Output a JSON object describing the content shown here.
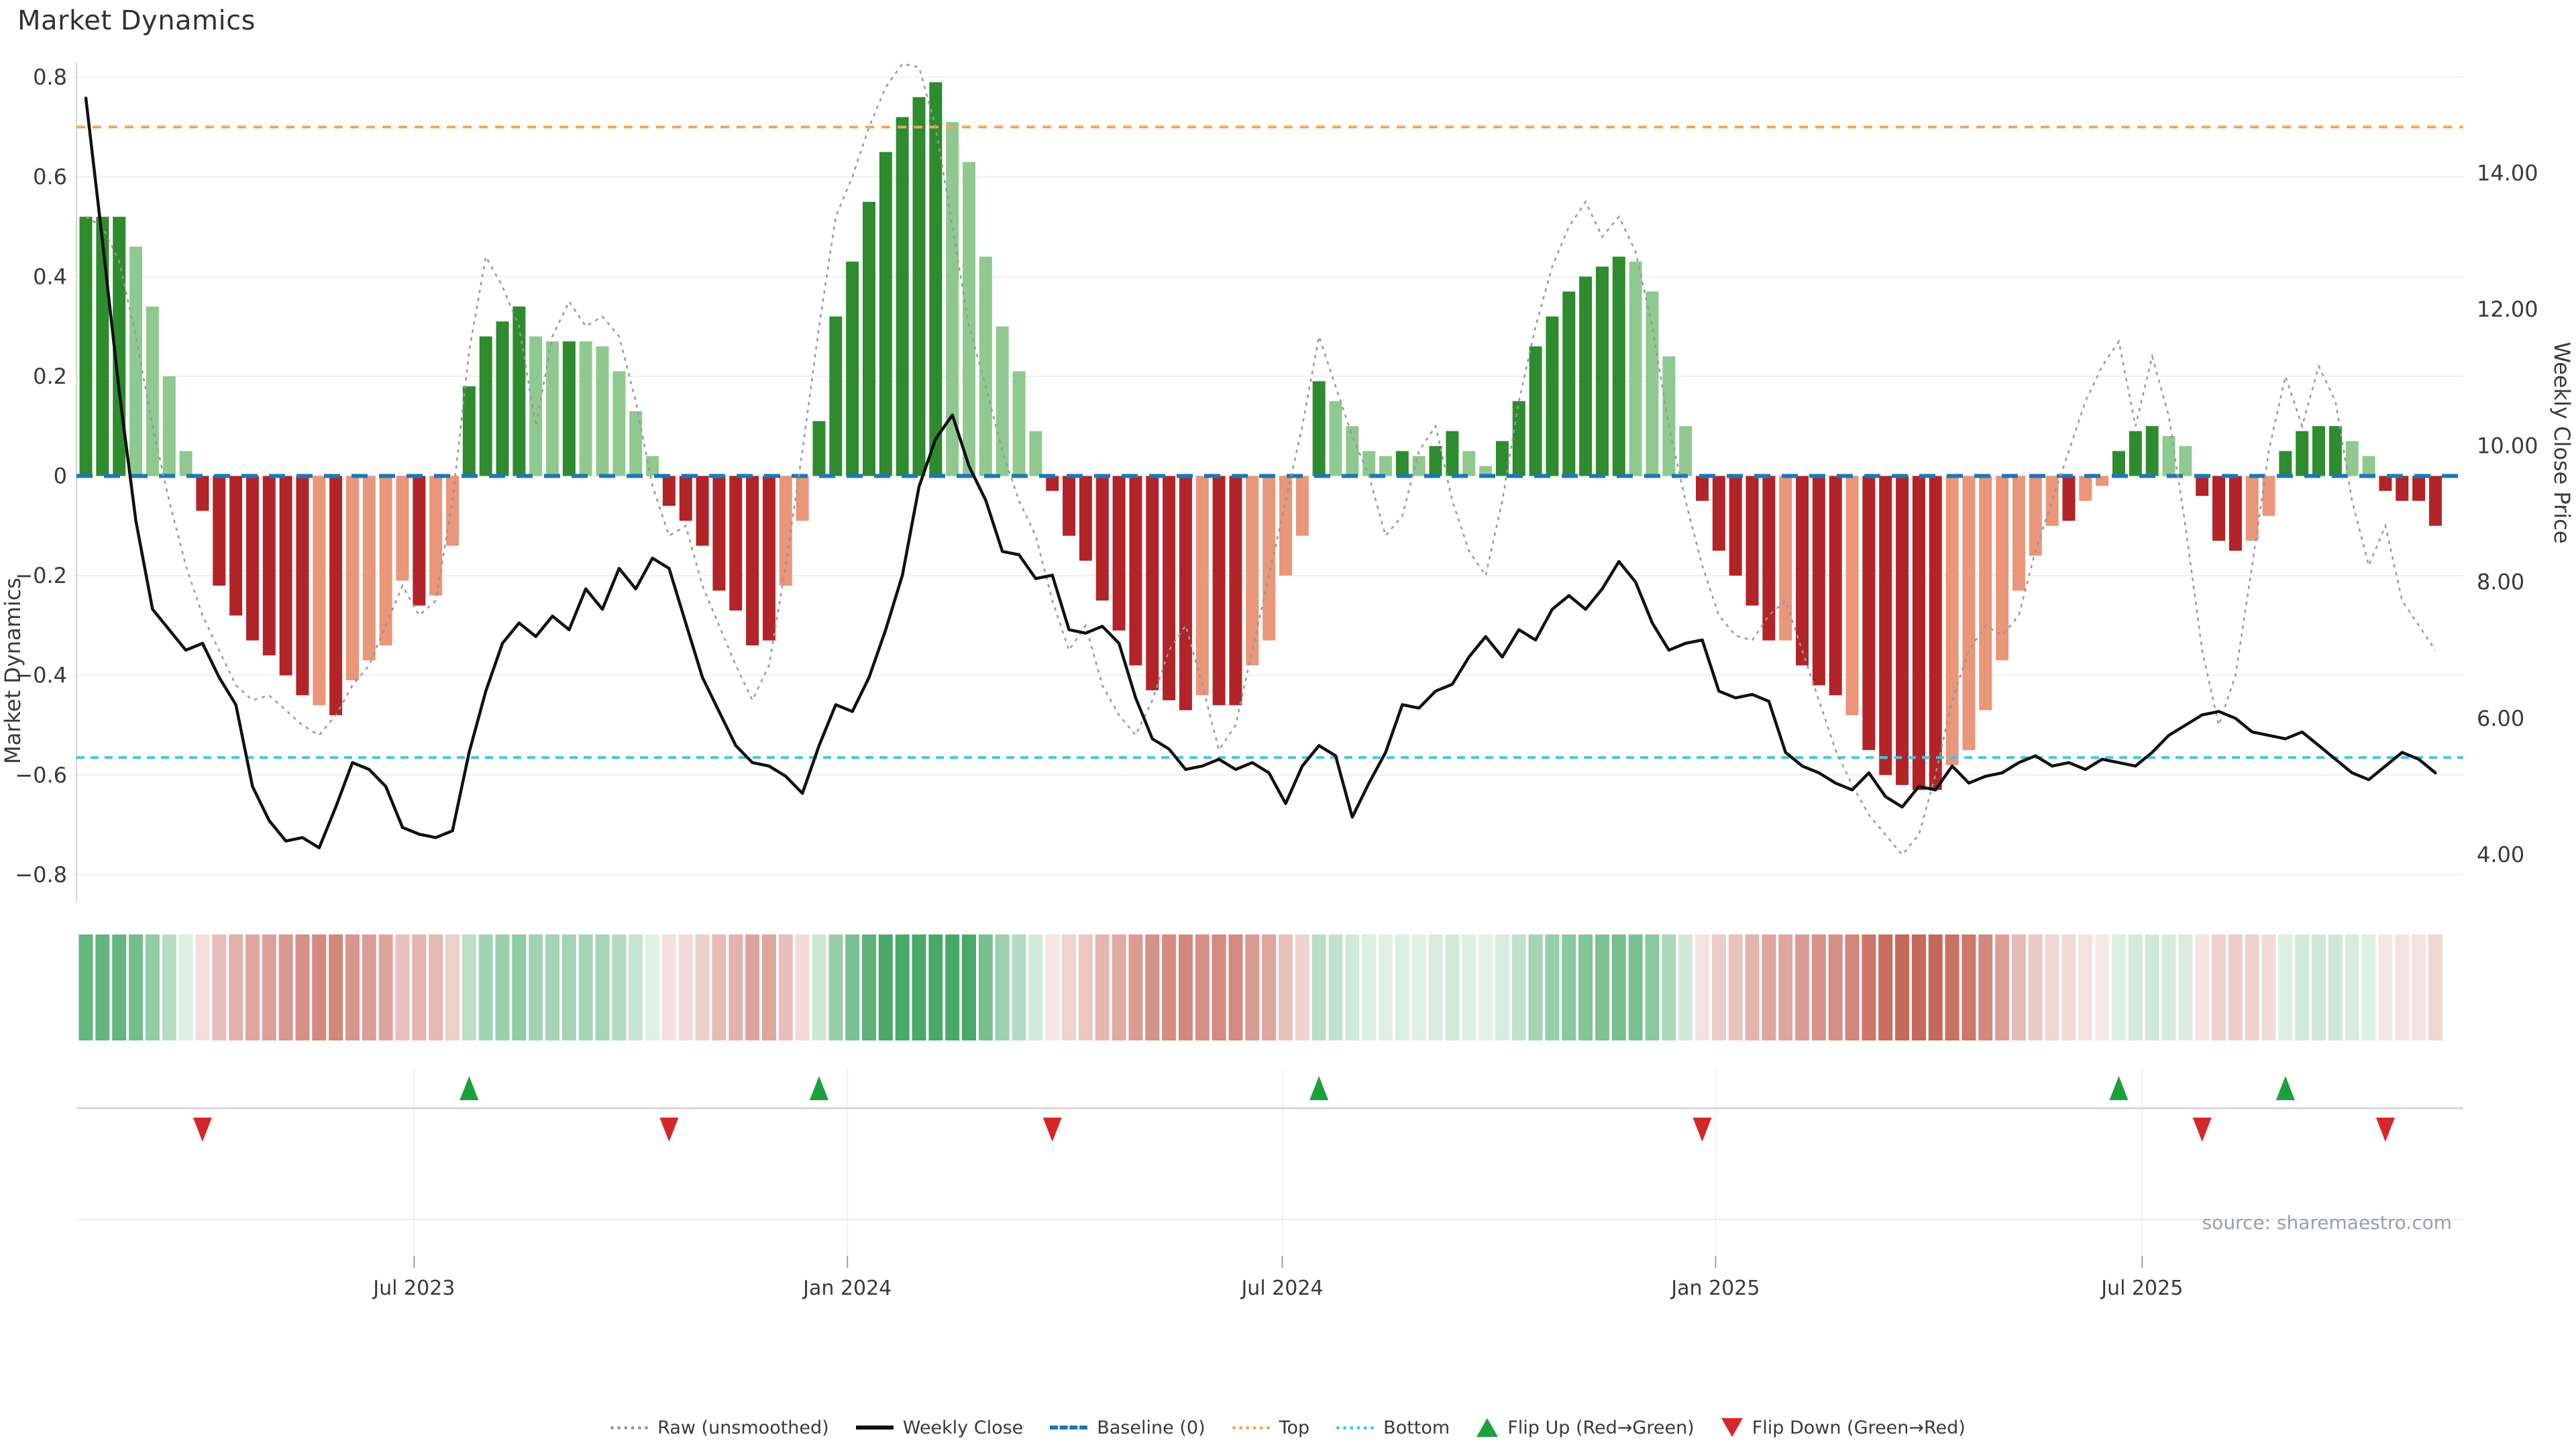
{
  "title": "Market Dynamics",
  "source_note": "source: sharemaestro.com",
  "axes": {
    "left_label": "Market Dynamics",
    "right_label": "Weekly Close Price",
    "left_ticks": [
      "0.8",
      "0.6",
      "0.4",
      "0.2",
      "0",
      "−0.2",
      "−0.4",
      "−0.6",
      "−0.8"
    ],
    "left_tick_values": [
      0.8,
      0.6,
      0.4,
      0.2,
      0,
      -0.2,
      -0.4,
      -0.6,
      -0.8
    ],
    "right_ticks": [
      "14.00",
      "12.00",
      "10.00",
      "8.00",
      "6.00",
      "4.00"
    ],
    "right_tick_values": [
      14,
      12,
      10,
      8,
      6,
      4
    ],
    "x_ticks": [
      {
        "label": "Jul 2023",
        "week": 19.7
      },
      {
        "label": "Jan 2024",
        "week": 45.7
      },
      {
        "label": "Jul 2024",
        "week": 71.8
      },
      {
        "label": "Jan 2025",
        "week": 97.8
      },
      {
        "label": "Jul 2025",
        "week": 123.4
      }
    ]
  },
  "legend": [
    {
      "label": "Raw (unsmoothed)",
      "swatch": "dotted-gray",
      "name": "legend-item-raw"
    },
    {
      "label": "Weekly Close",
      "swatch": "solid-black",
      "name": "legend-item-weekly-close"
    },
    {
      "label": "Baseline (0)",
      "swatch": "dashed-blue",
      "name": "legend-item-baseline"
    },
    {
      "label": "Top",
      "swatch": "dotted-orange",
      "name": "legend-item-top"
    },
    {
      "label": "Bottom",
      "swatch": "dotted-cyan",
      "name": "legend-item-bottom"
    },
    {
      "label": "Flip Up (Red→Green)",
      "swatch": "tri-up",
      "name": "legend-item-flip-up"
    },
    {
      "label": "Flip Down (Green→Red)",
      "swatch": "tri-down",
      "name": "legend-item-flip-down"
    }
  ],
  "colors": {
    "bar_pos_dark": "#2e8b2e",
    "bar_pos_light": "#8fc98f",
    "bar_neg_dark": "#b22428",
    "bar_neg_light": "#e9967a",
    "baseline_blue": "#1f77b4",
    "top_orange": "#f0a558",
    "bottom_cyan": "#3fc6ea",
    "raw_gray": "#999999",
    "price_black": "#111111",
    "grid": "#eef0f2",
    "spine": "#d0d4d9",
    "panel_line": "#d8d8d8",
    "flip_up_green": "#1ca03c",
    "flip_down_red": "#d62728",
    "heat_pos_base": "#4aa96a",
    "heat_neg_base": "#c7685c",
    "tick_text": "#3a3a3a",
    "source_text": "#9aa0a6"
  },
  "chart_data": {
    "type": "bar",
    "subtype": "oscillator-with-price-overlay",
    "title": "Market Dynamics",
    "xlabel": "",
    "ylabel_left": "Market Dynamics",
    "ylabel_right": "Weekly Close Price",
    "ylim_left": [
      -0.8,
      0.8
    ],
    "ylim_right": [
      4,
      14
    ],
    "grid": true,
    "legend_position": "bottom-center",
    "baseline": 0,
    "top_threshold": 0.7,
    "bottom_threshold": -0.565,
    "n_weeks": 142,
    "x_range_note": "weekly bars, Feb 2023 through Nov 2025",
    "values": [
      0.52,
      0.52,
      0.52,
      0.46,
      0.34,
      0.2,
      0.05,
      -0.07,
      -0.22,
      -0.28,
      -0.33,
      -0.36,
      -0.4,
      -0.44,
      -0.46,
      -0.48,
      -0.41,
      -0.37,
      -0.34,
      -0.21,
      -0.26,
      -0.24,
      -0.14,
      0.18,
      0.28,
      0.31,
      0.34,
      0.28,
      0.27,
      0.27,
      0.27,
      0.26,
      0.21,
      0.13,
      0.04,
      -0.06,
      -0.09,
      -0.14,
      -0.23,
      -0.27,
      -0.34,
      -0.33,
      -0.22,
      -0.09,
      0.11,
      0.32,
      0.43,
      0.55,
      0.65,
      0.72,
      0.76,
      0.79,
      0.71,
      0.63,
      0.44,
      0.3,
      0.21,
      0.09,
      -0.03,
      -0.12,
      -0.17,
      -0.25,
      -0.31,
      -0.38,
      -0.43,
      -0.45,
      -0.47,
      -0.44,
      -0.46,
      -0.46,
      -0.38,
      -0.33,
      -0.2,
      -0.12,
      0.19,
      0.15,
      0.1,
      0.05,
      0.04,
      0.05,
      0.04,
      0.06,
      0.09,
      0.05,
      0.02,
      0.07,
      0.15,
      0.26,
      0.32,
      0.37,
      0.4,
      0.42,
      0.44,
      0.43,
      0.37,
      0.24,
      0.1,
      -0.05,
      -0.15,
      -0.2,
      -0.26,
      -0.33,
      -0.33,
      -0.38,
      -0.42,
      -0.44,
      -0.48,
      -0.55,
      -0.6,
      -0.62,
      -0.63,
      -0.63,
      -0.58,
      -0.55,
      -0.47,
      -0.37,
      -0.23,
      -0.16,
      -0.1,
      -0.09,
      -0.05,
      -0.02,
      0.05,
      0.09,
      0.1,
      0.08,
      0.06,
      -0.04,
      -0.13,
      -0.15,
      -0.13,
      -0.08,
      0.05,
      0.09,
      0.1,
      0.1,
      0.07,
      0.04,
      -0.03,
      -0.05,
      -0.05,
      -0.1
    ],
    "tones": [
      "d",
      "d",
      "d",
      "l",
      "l",
      "l",
      "l",
      "d",
      "d",
      "d",
      "d",
      "d",
      "d",
      "d",
      "l",
      "d",
      "l",
      "l",
      "l",
      "l",
      "d",
      "l",
      "l",
      "d",
      "d",
      "d",
      "d",
      "l",
      "l",
      "d",
      "l",
      "l",
      "l",
      "l",
      "l",
      "d",
      "d",
      "d",
      "d",
      "d",
      "d",
      "d",
      "l",
      "l",
      "d",
      "d",
      "d",
      "d",
      "d",
      "d",
      "d",
      "d",
      "l",
      "l",
      "l",
      "l",
      "l",
      "l",
      "d",
      "d",
      "d",
      "d",
      "d",
      "d",
      "d",
      "d",
      "d",
      "l",
      "d",
      "d",
      "l",
      "l",
      "l",
      "l",
      "d",
      "l",
      "l",
      "l",
      "l",
      "d",
      "l",
      "d",
      "d",
      "l",
      "l",
      "d",
      "d",
      "d",
      "d",
      "d",
      "d",
      "d",
      "d",
      "l",
      "l",
      "l",
      "l",
      "d",
      "d",
      "d",
      "d",
      "d",
      "l",
      "d",
      "d",
      "d",
      "l",
      "d",
      "d",
      "d",
      "d",
      "d",
      "l",
      "l",
      "l",
      "l",
      "l",
      "l",
      "l",
      "d",
      "l",
      "l",
      "d",
      "d",
      "d",
      "l",
      "l",
      "d",
      "d",
      "d",
      "l",
      "l",
      "d",
      "d",
      "d",
      "d",
      "l",
      "l",
      "d",
      "d",
      "d",
      "d"
    ],
    "raw": [
      0.52,
      0.5,
      0.43,
      0.28,
      0.1,
      -0.05,
      -0.18,
      -0.28,
      -0.35,
      -0.42,
      -0.45,
      -0.44,
      -0.47,
      -0.5,
      -0.52,
      -0.48,
      -0.42,
      -0.38,
      -0.3,
      -0.22,
      -0.28,
      -0.25,
      -0.05,
      0.25,
      0.44,
      0.38,
      0.3,
      0.1,
      0.28,
      0.35,
      0.3,
      0.32,
      0.28,
      0.15,
      -0.02,
      -0.12,
      -0.1,
      -0.22,
      -0.3,
      -0.38,
      -0.45,
      -0.38,
      -0.18,
      0.05,
      0.3,
      0.52,
      0.6,
      0.7,
      0.78,
      0.84,
      0.82,
      0.7,
      0.5,
      0.3,
      0.18,
      0.05,
      -0.05,
      -0.12,
      -0.25,
      -0.35,
      -0.3,
      -0.42,
      -0.48,
      -0.52,
      -0.45,
      -0.35,
      -0.3,
      -0.42,
      -0.55,
      -0.5,
      -0.35,
      -0.2,
      -0.05,
      0.1,
      0.28,
      0.18,
      0.08,
      0.0,
      -0.12,
      -0.08,
      0.05,
      0.1,
      -0.05,
      -0.15,
      -0.2,
      -0.05,
      0.15,
      0.3,
      0.42,
      0.5,
      0.55,
      0.48,
      0.52,
      0.45,
      0.3,
      0.1,
      -0.05,
      -0.18,
      -0.28,
      -0.32,
      -0.33,
      -0.28,
      -0.25,
      -0.35,
      -0.45,
      -0.55,
      -0.62,
      -0.68,
      -0.72,
      -0.76,
      -0.72,
      -0.6,
      -0.45,
      -0.35,
      -0.3,
      -0.32,
      -0.28,
      -0.15,
      -0.05,
      0.05,
      0.15,
      0.22,
      0.27,
      0.1,
      0.24,
      0.12,
      -0.1,
      -0.35,
      -0.5,
      -0.4,
      -0.18,
      0.05,
      0.2,
      0.1,
      0.22,
      0.15,
      -0.05,
      -0.18,
      -0.1,
      -0.25,
      -0.3,
      -0.35
    ],
    "price": [
      15.1,
      13.0,
      10.8,
      8.9,
      7.6,
      7.3,
      7.0,
      7.1,
      6.6,
      6.2,
      5.0,
      4.5,
      4.2,
      4.25,
      4.1,
      4.7,
      5.35,
      5.25,
      5.0,
      4.4,
      4.3,
      4.25,
      4.35,
      5.5,
      6.4,
      7.1,
      7.4,
      7.2,
      7.5,
      7.3,
      7.9,
      7.6,
      8.2,
      7.9,
      8.35,
      8.2,
      7.4,
      6.6,
      6.1,
      5.6,
      5.35,
      5.3,
      5.15,
      4.9,
      5.6,
      6.2,
      6.1,
      6.6,
      7.3,
      8.1,
      9.4,
      10.1,
      10.45,
      9.7,
      9.2,
      8.45,
      8.4,
      8.05,
      8.1,
      7.3,
      7.25,
      7.35,
      7.1,
      6.3,
      5.7,
      5.55,
      5.25,
      5.3,
      5.4,
      5.25,
      5.35,
      5.2,
      4.75,
      5.3,
      5.6,
      5.45,
      4.55,
      5.05,
      5.5,
      6.2,
      6.15,
      6.4,
      6.5,
      6.9,
      7.2,
      6.9,
      7.3,
      7.15,
      7.6,
      7.8,
      7.6,
      7.9,
      8.3,
      8.0,
      7.4,
      7.0,
      7.1,
      7.15,
      6.4,
      6.3,
      6.35,
      6.25,
      5.5,
      5.3,
      5.2,
      5.05,
      4.95,
      5.2,
      4.85,
      4.7,
      5.0,
      4.95,
      5.3,
      5.05,
      5.15,
      5.2,
      5.35,
      5.45,
      5.3,
      5.35,
      5.25,
      5.4,
      5.35,
      5.3,
      5.5,
      5.75,
      5.9,
      6.05,
      6.1,
      6.0,
      5.8,
      5.75,
      5.7,
      5.8,
      5.6,
      5.4,
      5.2,
      5.1,
      5.3,
      5.5,
      5.4,
      5.2
    ],
    "flip_up_weeks": [
      23,
      44,
      74,
      122,
      132
    ],
    "flip_down_weeks": [
      7,
      35,
      58,
      97,
      127,
      138
    ],
    "heatmap": "one cell per week, green intensity for positive values, red intensity for negative values"
  }
}
